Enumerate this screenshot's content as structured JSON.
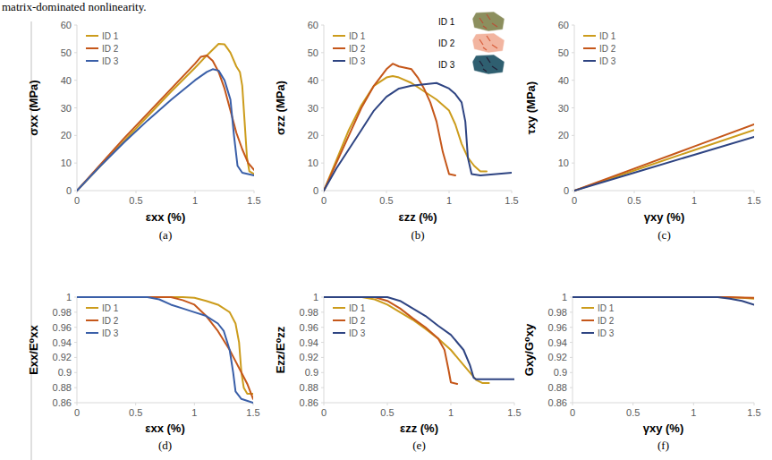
{
  "header": {
    "text": "matrix-dominated nonlinearity."
  },
  "chart_data": [
    {
      "type": "line",
      "label": "(a)",
      "x_label": "εxx (%)",
      "y_label": "σxx (MPa)",
      "xlim": [
        0,
        1.5
      ],
      "xticks": [
        0,
        0.5,
        1,
        1.5
      ],
      "ylim": [
        0,
        60
      ],
      "yticks": [
        0,
        10,
        20,
        30,
        40,
        50,
        60
      ],
      "grid": false,
      "legend": "top-left",
      "series": [
        {
          "name": "ID 1",
          "color": "#cc9c1c",
          "x": [
            0,
            0.2,
            0.4,
            0.6,
            0.8,
            1.0,
            1.1,
            1.2,
            1.25,
            1.3,
            1.35,
            1.38,
            1.4,
            1.42,
            1.44,
            1.46,
            1.5
          ],
          "values": [
            0,
            9,
            18,
            27,
            36,
            44.5,
            49,
            53.2,
            53,
            50,
            45,
            43,
            38,
            25,
            12,
            7,
            6
          ]
        },
        {
          "name": "ID 2",
          "color": "#c5571a",
          "x": [
            0,
            0.2,
            0.4,
            0.6,
            0.8,
            1.0,
            1.05,
            1.1,
            1.15,
            1.2,
            1.25,
            1.3,
            1.35,
            1.4,
            1.45,
            1.5
          ],
          "values": [
            0,
            9.5,
            19,
            28,
            37,
            46,
            48.5,
            49,
            47,
            43,
            37,
            29,
            21,
            15,
            10,
            7.5
          ]
        },
        {
          "name": "ID 3",
          "color": "#3a5fa8",
          "x": [
            0,
            0.2,
            0.4,
            0.6,
            0.8,
            1.0,
            1.1,
            1.15,
            1.2,
            1.25,
            1.3,
            1.33,
            1.36,
            1.4,
            1.5
          ],
          "values": [
            0,
            9,
            17.5,
            25.5,
            33,
            40,
            43,
            44,
            43.5,
            40,
            33,
            20,
            9,
            6.5,
            5.5
          ]
        }
      ]
    },
    {
      "type": "line",
      "label": "(b)",
      "x_label": "εzz (%)",
      "y_label": "σzz (MPa)",
      "xlim": [
        0,
        1.5
      ],
      "xticks": [
        0,
        0.5,
        1,
        1.5
      ],
      "ylim": [
        0,
        60
      ],
      "yticks": [
        0,
        10,
        20,
        30,
        40,
        50,
        60
      ],
      "grid": false,
      "legend": "top-left",
      "annotations": [
        "ID 1",
        "ID 2",
        "ID 3"
      ],
      "series": [
        {
          "name": "ID 1",
          "color": "#cc9c1c",
          "x": [
            0,
            0.1,
            0.2,
            0.3,
            0.4,
            0.5,
            0.55,
            0.6,
            0.7,
            0.8,
            0.9,
            1.0,
            1.05,
            1.1,
            1.15,
            1.2,
            1.25,
            1.3
          ],
          "values": [
            0,
            11,
            22,
            31,
            38,
            41,
            41.5,
            41,
            39,
            36,
            33,
            29,
            24,
            17,
            12,
            9,
            7,
            7
          ]
        },
        {
          "name": "ID 2",
          "color": "#c5571a",
          "x": [
            0,
            0.1,
            0.2,
            0.3,
            0.4,
            0.5,
            0.55,
            0.6,
            0.7,
            0.75,
            0.8,
            0.85,
            0.9,
            0.95,
            1.0,
            1.05
          ],
          "values": [
            0,
            10,
            20,
            30,
            38,
            44,
            46,
            45,
            44,
            41,
            37,
            32,
            25,
            14,
            6,
            5.5
          ]
        },
        {
          "name": "ID 3",
          "color": "#2e4482",
          "x": [
            0,
            0.1,
            0.2,
            0.3,
            0.4,
            0.5,
            0.6,
            0.7,
            0.8,
            0.9,
            1.0,
            1.05,
            1.1,
            1.13,
            1.15,
            1.18,
            1.25,
            1.5
          ],
          "values": [
            0,
            8,
            15,
            22,
            29,
            34,
            37,
            38,
            38.5,
            39,
            37,
            35,
            32,
            25,
            12,
            6,
            5.5,
            6.5
          ]
        }
      ]
    },
    {
      "type": "line",
      "label": "(c)",
      "x_label": "γxy (%)",
      "y_label": "τxy (MPa)",
      "xlim": [
        0,
        1.5
      ],
      "xticks": [
        0,
        0.5,
        1,
        1.5
      ],
      "ylim": [
        0,
        60
      ],
      "yticks": [
        0,
        10,
        20,
        30,
        40,
        50,
        60
      ],
      "grid": false,
      "legend": "top-left",
      "series": [
        {
          "name": "ID 1",
          "color": "#cc9c1c",
          "x": [
            0,
            0.5,
            1,
            1.5
          ],
          "values": [
            0,
            7.3,
            14.7,
            22
          ]
        },
        {
          "name": "ID 2",
          "color": "#c5571a",
          "x": [
            0,
            0.5,
            1,
            1.5
          ],
          "values": [
            0,
            8,
            16,
            24
          ]
        },
        {
          "name": "ID 3",
          "color": "#2e4482",
          "x": [
            0,
            0.5,
            1,
            1.5
          ],
          "values": [
            0,
            6.5,
            13,
            19.5
          ]
        }
      ]
    },
    {
      "type": "line",
      "label": "(d)",
      "x_label": "εxx (%)",
      "y_label": "Exx/E⁰xx",
      "xlim": [
        0,
        1.5
      ],
      "xticks": [
        0,
        0.5,
        1,
        1.5
      ],
      "ylim": [
        0.86,
        1
      ],
      "yticks": [
        0.86,
        0.88,
        0.9,
        0.92,
        0.94,
        0.96,
        0.98,
        1
      ],
      "grid": false,
      "legend": "top-left",
      "series": [
        {
          "name": "ID 1",
          "color": "#cc9c1c",
          "x": [
            0,
            0.9,
            1.0,
            1.1,
            1.2,
            1.3,
            1.35,
            1.38,
            1.4,
            1.42,
            1.45,
            1.5
          ],
          "values": [
            1,
            1,
            0.999,
            0.995,
            0.99,
            0.98,
            0.965,
            0.94,
            0.9,
            0.88,
            0.872,
            0.872
          ]
        },
        {
          "name": "ID 2",
          "color": "#c5571a",
          "x": [
            0,
            0.8,
            0.9,
            1.0,
            1.1,
            1.2,
            1.3,
            1.35,
            1.4,
            1.45,
            1.5
          ],
          "values": [
            1,
            1,
            0.996,
            0.99,
            0.975,
            0.955,
            0.93,
            0.915,
            0.9,
            0.885,
            0.865
          ]
        },
        {
          "name": "ID 3",
          "color": "#3a5fa8",
          "x": [
            0,
            0.6,
            0.7,
            0.8,
            0.9,
            1.0,
            1.1,
            1.2,
            1.25,
            1.3,
            1.33,
            1.35,
            1.4,
            1.5
          ],
          "values": [
            1,
            1,
            0.997,
            0.99,
            0.985,
            0.98,
            0.975,
            0.965,
            0.955,
            0.93,
            0.9,
            0.875,
            0.865,
            0.86
          ]
        }
      ]
    },
    {
      "type": "line",
      "label": "(e)",
      "x_label": "εzz (%)",
      "y_label": "Ezz/E⁰zz",
      "xlim": [
        0,
        1.5
      ],
      "xticks": [
        0,
        0.5,
        1,
        1.5
      ],
      "ylim": [
        0.86,
        1
      ],
      "yticks": [
        0.86,
        0.88,
        0.9,
        0.92,
        0.94,
        0.96,
        0.98,
        1
      ],
      "grid": false,
      "legend": "top-left",
      "series": [
        {
          "name": "ID 1",
          "color": "#cc9c1c",
          "x": [
            0,
            0.3,
            0.4,
            0.5,
            0.6,
            0.7,
            0.8,
            0.9,
            1.0,
            1.1,
            1.2,
            1.25,
            1.3
          ],
          "values": [
            1,
            1,
            0.997,
            0.99,
            0.98,
            0.97,
            0.958,
            0.945,
            0.93,
            0.91,
            0.89,
            0.886,
            0.886
          ]
        },
        {
          "name": "ID 2",
          "color": "#c5571a",
          "x": [
            0,
            0.4,
            0.5,
            0.6,
            0.7,
            0.8,
            0.9,
            0.95,
            0.98,
            1.0,
            1.05
          ],
          "values": [
            1,
            1,
            0.995,
            0.985,
            0.972,
            0.96,
            0.945,
            0.93,
            0.905,
            0.887,
            0.885
          ]
        },
        {
          "name": "ID 3",
          "color": "#2e4482",
          "x": [
            0,
            0.5,
            0.6,
            0.7,
            0.8,
            0.9,
            1.0,
            1.1,
            1.15,
            1.18,
            1.2,
            1.5
          ],
          "values": [
            1,
            1,
            0.995,
            0.985,
            0.975,
            0.962,
            0.95,
            0.93,
            0.91,
            0.893,
            0.891,
            0.891
          ]
        }
      ]
    },
    {
      "type": "line",
      "label": "(f)",
      "x_label": "γxy (%)",
      "y_label": "Gxy/G⁰xy",
      "xlim": [
        0,
        1.5
      ],
      "xticks": [
        0,
        0.5,
        1,
        1.5
      ],
      "ylim": [
        0.86,
        1
      ],
      "yticks": [
        0.86,
        0.88,
        0.9,
        0.92,
        0.94,
        0.96,
        0.98,
        1
      ],
      "grid": false,
      "legend": "top-left",
      "series": [
        {
          "name": "ID 1",
          "color": "#cc9c1c",
          "x": [
            0,
            1.2,
            1.3,
            1.4,
            1.5
          ],
          "values": [
            1,
            1,
            0.9995,
            0.999,
            0.998
          ]
        },
        {
          "name": "ID 2",
          "color": "#c5571a",
          "x": [
            0,
            1.2,
            1.3,
            1.4,
            1.5
          ],
          "values": [
            1,
            1,
            1,
            0.9995,
            0.999
          ]
        },
        {
          "name": "ID 3",
          "color": "#2e4482",
          "x": [
            0,
            1.2,
            1.3,
            1.4,
            1.5
          ],
          "values": [
            1,
            1,
            0.998,
            0.995,
            0.99
          ]
        }
      ]
    }
  ]
}
